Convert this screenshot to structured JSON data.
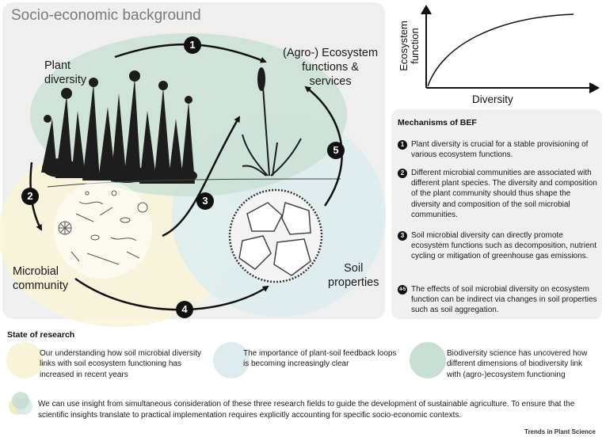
{
  "panel": {
    "title": "Socio-economic background"
  },
  "labels": {
    "plant_diversity": [
      "Plant",
      "diversity"
    ],
    "ecosystem_functions": [
      "(Agro-) Ecosystem",
      "functions &",
      "services"
    ],
    "microbial_community": [
      "Microbial",
      "community"
    ],
    "soil_properties": [
      "Soil",
      "properties"
    ]
  },
  "arrow_numbers": [
    "1",
    "2",
    "3",
    "4",
    "5"
  ],
  "graph": {
    "ylabel": [
      "Ecosystem",
      "function"
    ],
    "xlabel": "Diversity"
  },
  "mechanisms": {
    "title": "Mechanisms of BEF",
    "items": [
      {
        "badge": "1",
        "text": "Plant diversity is crucial for a stable provisioning of various ecosystem functions."
      },
      {
        "badge": "2",
        "text": "Different microbial communities are associated with different plant species. The diversity and composition of the plant community should thus shape the diversity and composition of the soil microbial communities."
      },
      {
        "badge": "3",
        "text": "Soil microbial diversity can directly promote ecosystem functions such as decomposition, nutrient cycling or mitigation of greenhouse gas emissions."
      },
      {
        "badge": "4-5",
        "text": "The effects of soil microbial diversity on ecosystem function can be indirect via changes in soil properties such as soil aggregation."
      }
    ]
  },
  "state": {
    "title": "State of research",
    "items": [
      {
        "text": "Our understanding how soil microbial diversity links with soil ecosystem functioning has increased in recent years",
        "color": "#f9f3d7"
      },
      {
        "text": "The importance of plant-soil feedback loops is becoming increasingly clear",
        "color": "#dcecef"
      },
      {
        "text": "Biodiversity science has uncovered how different dimensions of biodiversity link with (agro-)ecosystem functioning",
        "color": "#c8e0d3"
      }
    ],
    "conclusion": "We can use insight from simultaneous consideration of these three research fields to guide the development of sustainable agriculture. To ensure that the scientific insights translate to practical implementation requires explicitly accounting for specific socio-economic contexts."
  },
  "colors": {
    "yellow": "#f9f3d7",
    "blue": "#dcecef",
    "green": "#c8e0d3",
    "panel": "#efefef"
  },
  "footer": {
    "journal": "Trends in Plant Science"
  }
}
